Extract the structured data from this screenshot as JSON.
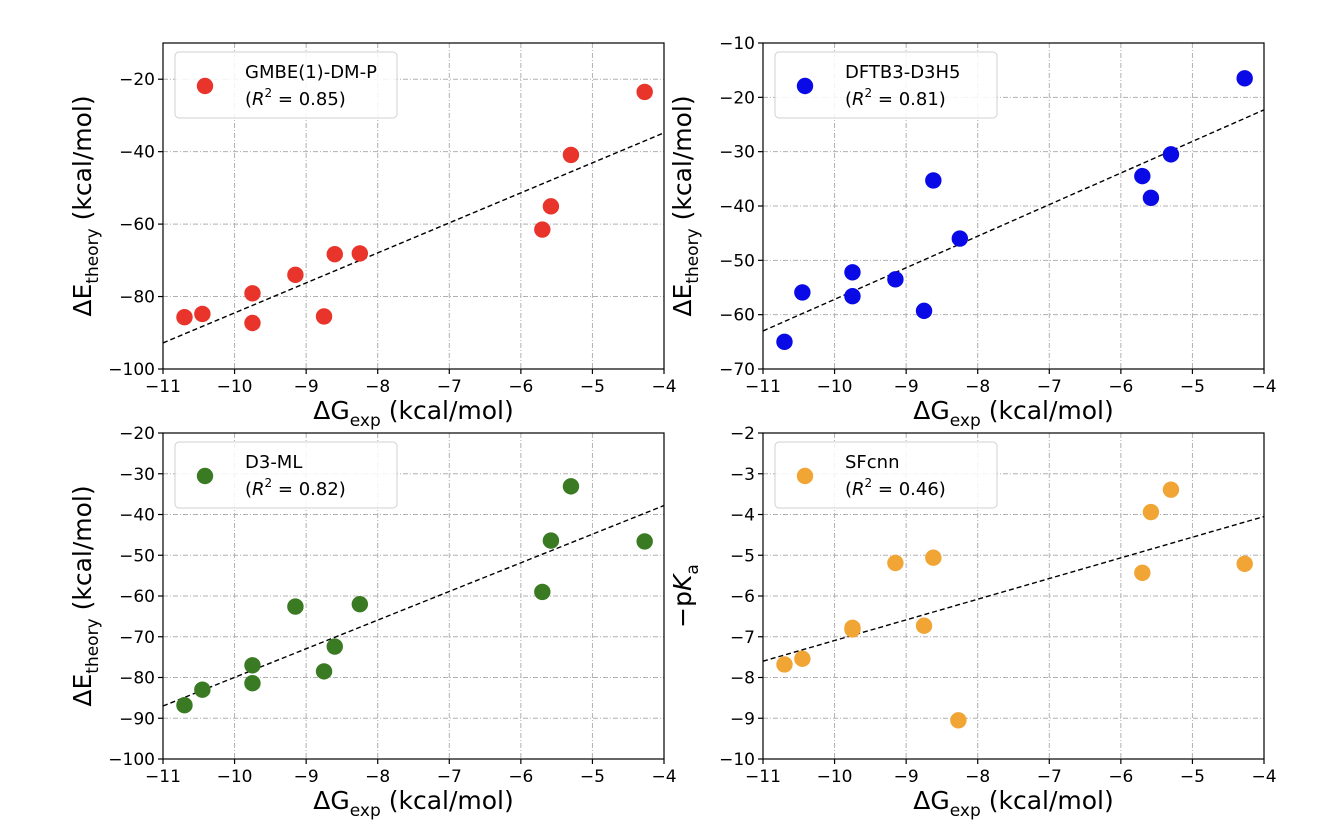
{
  "chart_data": [
    {
      "type": "scatter",
      "series_name": "GMBE(1)-DM-P",
      "r2_label": "(R² = 0.85)",
      "r2_value": "0.85",
      "color": "#e8342a",
      "x": [
        -10.7,
        -10.45,
        -9.75,
        -9.75,
        -9.15,
        -8.75,
        -8.6,
        -8.25,
        -5.7,
        -5.58,
        -5.3,
        -4.27
      ],
      "y": [
        -85.7,
        -84.8,
        -87.3,
        -79.1,
        -74.0,
        -85.5,
        -68.3,
        -68.1,
        -61.5,
        -55.1,
        -40.9,
        -23.5
      ],
      "fit_line": {
        "x": [
          -11,
          -4
        ],
        "y": [
          -92.8,
          -34.8
        ]
      },
      "xlim": [
        -11,
        -4
      ],
      "ylim": [
        -100,
        -10
      ],
      "xticks": [
        -11,
        -10,
        -9,
        -8,
        -7,
        -6,
        -5,
        -4
      ],
      "yticks": [
        -100,
        -80,
        -60,
        -40,
        -20
      ],
      "xlabel": {
        "main": "ΔG",
        "sub": "exp",
        "units": " (kcal/mol)"
      },
      "ylabel": {
        "main": "ΔE",
        "sub": "theory",
        "units": " (kcal/mol)"
      },
      "grid": true,
      "legend_position": "upper-left"
    },
    {
      "type": "scatter",
      "series_name": "DFTB3-D3H5",
      "r2_label": "(R² = 0.81)",
      "r2_value": "0.81",
      "color": "#0a0ae6",
      "x": [
        -10.7,
        -10.45,
        -9.75,
        -9.75,
        -9.15,
        -8.75,
        -8.62,
        -8.25,
        -5.7,
        -5.58,
        -5.3,
        -4.27
      ],
      "y": [
        -65.0,
        -55.9,
        -52.2,
        -56.6,
        -53.5,
        -59.3,
        -35.3,
        -46.0,
        -34.5,
        -38.5,
        -30.5,
        -16.5
      ],
      "fit_line": {
        "x": [
          -11,
          -4
        ],
        "y": [
          -63.0,
          -22.3
        ]
      },
      "xlim": [
        -11,
        -4
      ],
      "ylim": [
        -70,
        -10
      ],
      "xticks": [
        -11,
        -10,
        -9,
        -8,
        -7,
        -6,
        -5,
        -4
      ],
      "yticks": [
        -70,
        -60,
        -50,
        -40,
        -30,
        -20,
        -10
      ],
      "xlabel": {
        "main": "ΔG",
        "sub": "exp",
        "units": " (kcal/mol)"
      },
      "ylabel": {
        "main": "ΔE",
        "sub": "theory",
        "units": " (kcal/mol)"
      },
      "grid": true,
      "legend_position": "upper-left"
    },
    {
      "type": "scatter",
      "series_name": "D3-ML",
      "r2_label": "(R² = 0.82)",
      "r2_value": "0.82",
      "color": "#3a7a22",
      "x": [
        -10.7,
        -10.45,
        -9.75,
        -9.75,
        -9.15,
        -8.75,
        -8.6,
        -8.25,
        -5.7,
        -5.58,
        -5.3,
        -4.27
      ],
      "y": [
        -86.8,
        -83.0,
        -77.0,
        -81.4,
        -62.6,
        -78.5,
        -72.4,
        -62.0,
        -59.0,
        -46.4,
        -33.1,
        -46.6
      ],
      "fit_line": {
        "x": [
          -11,
          -4
        ],
        "y": [
          -87.0,
          -37.8
        ]
      },
      "xlim": [
        -11,
        -4
      ],
      "ylim": [
        -100,
        -20
      ],
      "xticks": [
        -11,
        -10,
        -9,
        -8,
        -7,
        -6,
        -5,
        -4
      ],
      "yticks": [
        -100,
        -90,
        -80,
        -70,
        -60,
        -50,
        -40,
        -30,
        -20
      ],
      "xlabel": {
        "main": "ΔG",
        "sub": "exp",
        "units": " (kcal/mol)"
      },
      "ylabel": {
        "main": "ΔE",
        "sub": "theory",
        "units": " (kcal/mol)"
      },
      "grid": true,
      "legend_position": "upper-left"
    },
    {
      "type": "scatter",
      "series_name": "SFcnn",
      "r2_label": "(R² = 0.46)",
      "r2_value": "0.46",
      "color": "#f0a534",
      "x": [
        -10.7,
        -10.45,
        -9.75,
        -9.75,
        -9.15,
        -8.75,
        -8.62,
        -8.27,
        -5.7,
        -5.58,
        -5.3,
        -4.27
      ],
      "y": [
        -7.68,
        -7.54,
        -6.82,
        -6.78,
        -5.19,
        -6.73,
        -5.06,
        -9.05,
        -5.43,
        -3.94,
        -3.39,
        -5.21
      ],
      "fit_line": {
        "x": [
          -11,
          -4
        ],
        "y": [
          -7.6,
          -4.05
        ]
      },
      "xlim": [
        -11,
        -4
      ],
      "ylim": [
        -10,
        -2
      ],
      "xticks": [
        -11,
        -10,
        -9,
        -8,
        -7,
        -6,
        -5,
        -4
      ],
      "yticks": [
        -10,
        -9,
        -8,
        -7,
        -6,
        -5,
        -4,
        -3,
        -2
      ],
      "xlabel": {
        "main": "ΔG",
        "sub": "exp",
        "units": " (kcal/mol)"
      },
      "ylabel": {
        "main": "−p",
        "italic": "K",
        "sub": "a",
        "units": ""
      },
      "grid": true,
      "legend_position": "upper-left"
    }
  ]
}
